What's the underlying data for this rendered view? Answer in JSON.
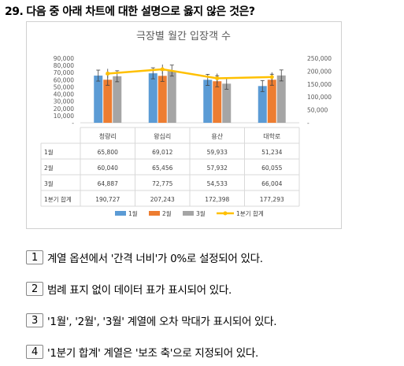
{
  "question": {
    "number": "29.",
    "text": "다음 중 아래 차트에 대한 설명으로 옳지 않은 것은?"
  },
  "chart_data": {
    "type": "bar",
    "title": "극장별 월간 입장객 수",
    "categories": [
      "청량리",
      "왕십리",
      "용산",
      "대학로"
    ],
    "series": [
      {
        "name": "1월",
        "values": [
          65800,
          69012,
          59933,
          51234
        ],
        "color": "#5b9bd5",
        "kind": "bar",
        "axis": "primary"
      },
      {
        "name": "2월",
        "values": [
          60040,
          65456,
          57932,
          60055
        ],
        "color": "#ed7d31",
        "kind": "bar",
        "axis": "primary"
      },
      {
        "name": "3월",
        "values": [
          64887,
          72775,
          54533,
          66004
        ],
        "color": "#a5a5a5",
        "kind": "bar",
        "axis": "primary"
      },
      {
        "name": "1분기 합계",
        "values": [
          190727,
          207243,
          172398,
          177293
        ],
        "color": "#ffc000",
        "kind": "line",
        "axis": "secondary"
      }
    ],
    "primary_axis": {
      "min": 0,
      "max": 90000,
      "step": 10000,
      "ticks": [
        "-",
        "10,000",
        "20,000",
        "30,000",
        "40,000",
        "50,000",
        "60,000",
        "70,000",
        "80,000",
        "90,000"
      ]
    },
    "secondary_axis": {
      "min": 0,
      "max": 250000,
      "step": 50000,
      "ticks": [
        "-",
        "50,000",
        "100,000",
        "150,000",
        "200,000",
        "250,000"
      ]
    },
    "error_bars": true,
    "gridlines": false,
    "legend_position": "bottom",
    "data_table": {
      "row_labels": [
        "1월",
        "2월",
        "3월",
        "1분기 합계"
      ],
      "rows": [
        [
          "65,800",
          "69,012",
          "59,933",
          "51,234"
        ],
        [
          "60,040",
          "65,456",
          "57,932",
          "60,055"
        ],
        [
          "64,887",
          "72,775",
          "54,533",
          "66,004"
        ],
        [
          "190,727",
          "207,243",
          "172,398",
          "177,293"
        ]
      ]
    }
  },
  "choices": [
    {
      "num": "1",
      "text": "계열 옵션에서 '간격 너비'가 0%로 설정되어 있다."
    },
    {
      "num": "2",
      "text": "범례 표지 없이 데이터 표가 표시되어 있다."
    },
    {
      "num": "3",
      "text": "'1월', '2월', '3월' 계열에 오차 막대가 표시되어 있다."
    },
    {
      "num": "4",
      "text": "'1분기 합계' 계열은 '보조 축'으로 지정되어 있다."
    }
  ]
}
